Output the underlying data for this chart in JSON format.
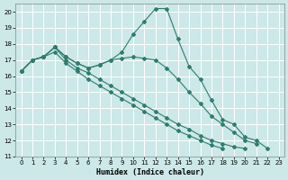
{
  "xlabel": "Humidex (Indice chaleur)",
  "bg_color": "#cce8e8",
  "grid_color": "#ffffff",
  "line_color": "#2e7d6e",
  "xlim": [
    -0.5,
    23.5
  ],
  "ylim": [
    11,
    20.5
  ],
  "xticks": [
    0,
    1,
    2,
    3,
    4,
    5,
    6,
    7,
    8,
    9,
    10,
    11,
    12,
    13,
    14,
    15,
    16,
    17,
    18,
    19,
    20,
    21,
    22,
    23
  ],
  "yticks": [
    11,
    12,
    13,
    14,
    15,
    16,
    17,
    18,
    19,
    20
  ],
  "series": [
    {
      "x": [
        0,
        1,
        2,
        3,
        4,
        5,
        6,
        7,
        8,
        9,
        10,
        11,
        12,
        13,
        14,
        15,
        16,
        17,
        18,
        19,
        20,
        21,
        22
      ],
      "y": [
        16.3,
        17.0,
        17.2,
        17.8,
        17.2,
        16.8,
        16.5,
        16.7,
        17.0,
        17.5,
        18.6,
        19.4,
        20.2,
        20.2,
        18.3,
        16.6,
        15.8,
        14.5,
        13.3,
        13.0,
        12.2,
        12.0,
        11.5
      ]
    },
    {
      "x": [
        0,
        1,
        2,
        3,
        4,
        5,
        6,
        7,
        8,
        9,
        10,
        11,
        12,
        13,
        14,
        15,
        16,
        17,
        18,
        19,
        20,
        21,
        22
      ],
      "y": [
        16.3,
        17.0,
        17.2,
        17.8,
        17.2,
        16.8,
        16.5,
        16.7,
        17.0,
        17.1,
        17.2,
        17.1,
        17.0,
        16.5,
        15.8,
        15.0,
        14.3,
        13.5,
        13.0,
        12.5,
        12.0,
        11.8,
        null
      ]
    },
    {
      "x": [
        0,
        1,
        2,
        3,
        4,
        5,
        6,
        7,
        8,
        9,
        10,
        11,
        12,
        13,
        14,
        15,
        16,
        17,
        18,
        19,
        20,
        21,
        22,
        23
      ],
      "y": [
        16.3,
        17.0,
        17.2,
        17.8,
        17.0,
        16.5,
        16.2,
        15.8,
        15.4,
        15.0,
        14.6,
        14.2,
        13.8,
        13.4,
        13.0,
        12.7,
        12.3,
        12.0,
        11.8,
        11.6,
        11.5,
        null,
        null,
        null
      ]
    },
    {
      "x": [
        0,
        1,
        2,
        3,
        4,
        5,
        6,
        7,
        8,
        9,
        10,
        11,
        12,
        13,
        14,
        15,
        16,
        17,
        18,
        19,
        20,
        21,
        22,
        23
      ],
      "y": [
        16.3,
        17.0,
        17.2,
        17.5,
        16.8,
        16.3,
        15.8,
        15.4,
        15.0,
        14.6,
        14.2,
        13.8,
        13.4,
        13.0,
        12.6,
        12.3,
        12.0,
        11.7,
        11.5,
        null,
        null,
        null,
        null,
        null
      ]
    }
  ]
}
